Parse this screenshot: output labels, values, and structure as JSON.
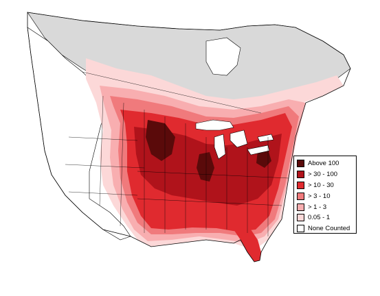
{
  "legend": {
    "items": [
      {
        "label": "Above 100",
        "color": "#5a0a0a"
      },
      {
        "label": "> 30 - 100",
        "color": "#b0131b"
      },
      {
        "label": "> 10 - 30",
        "color": "#e02a2f"
      },
      {
        "label": "> 3 - 10",
        "color": "#f07a7c"
      },
      {
        "label": "> 1 - 3",
        "color": "#f8aeb0"
      },
      {
        "label": "0.05 - 1",
        "color": "#fcd8d8"
      },
      {
        "label": "None Counted",
        "color": "#ffffff"
      }
    ]
  },
  "colors": {
    "unsurveyed": "#d9d9d9",
    "land": "#ffffff",
    "border": "#000000"
  }
}
